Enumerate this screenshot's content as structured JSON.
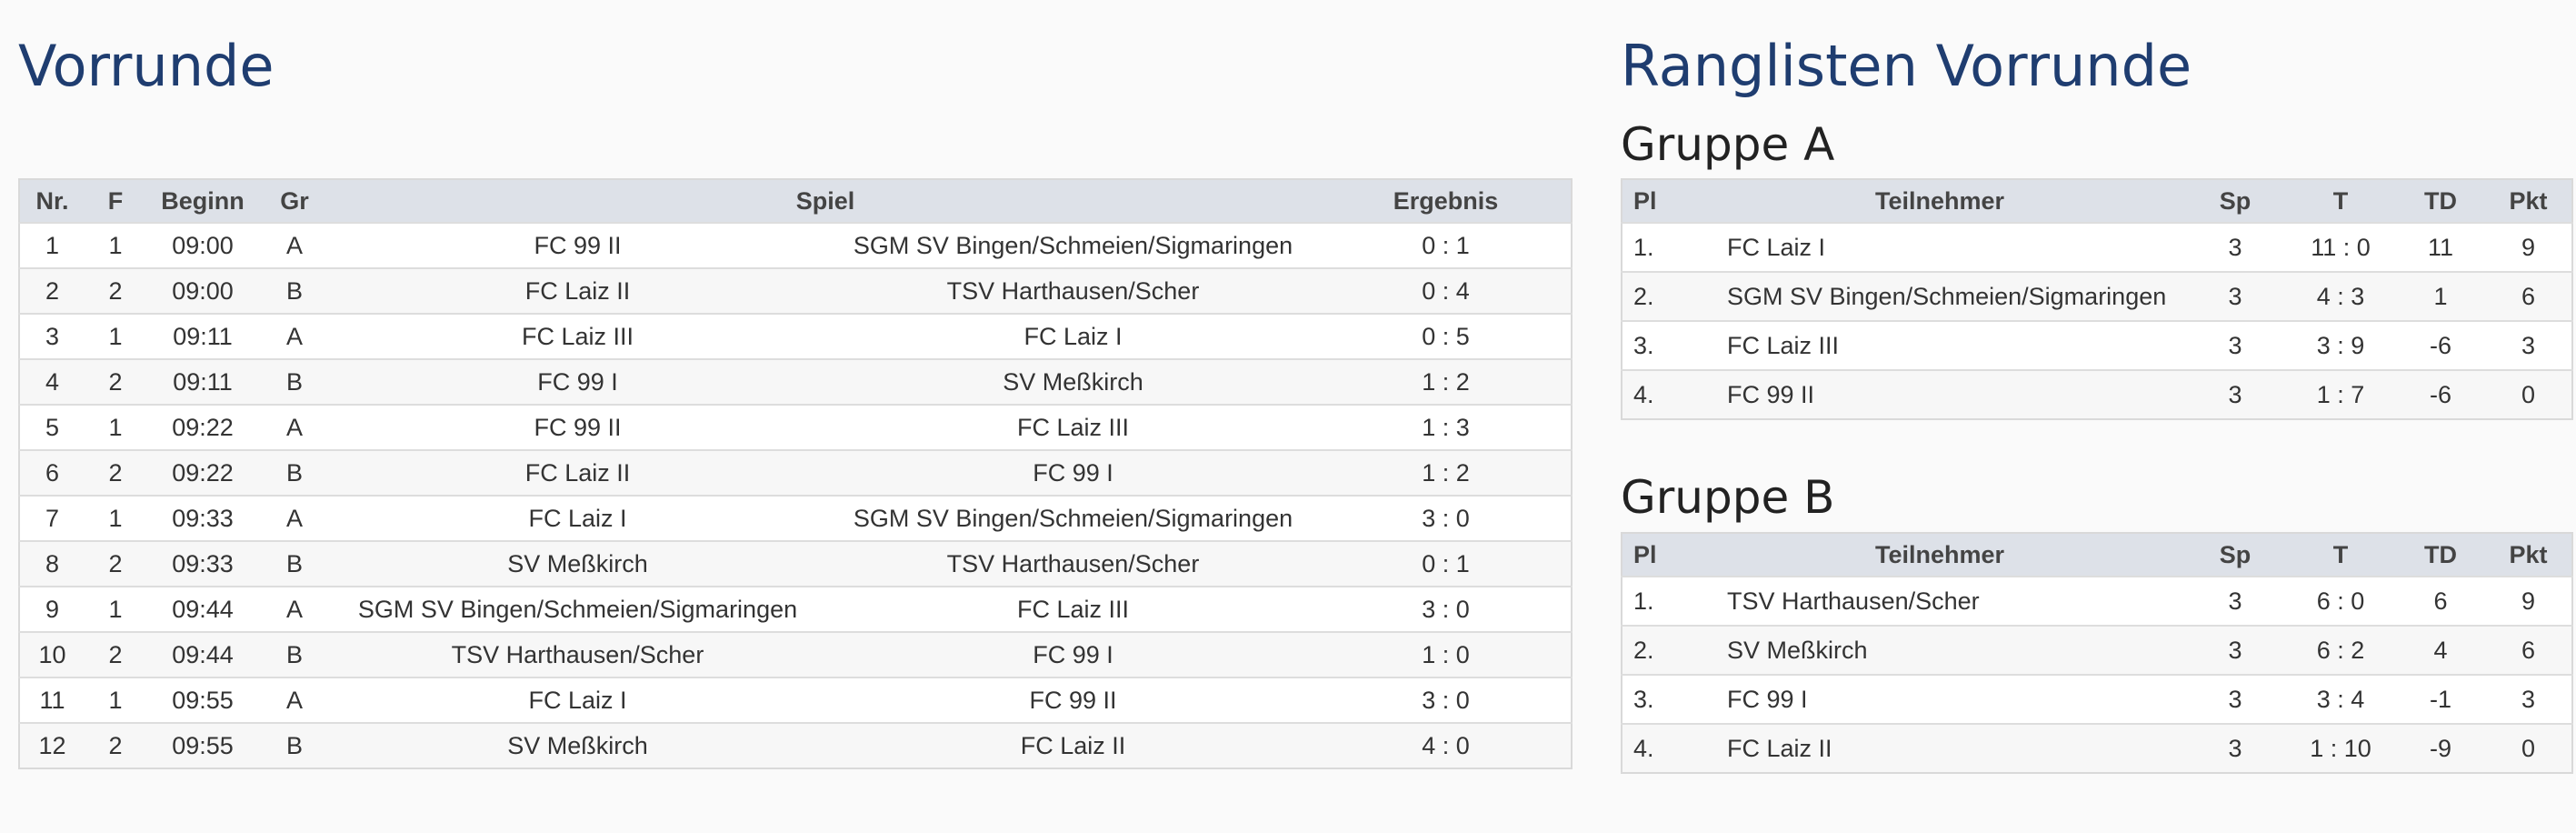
{
  "vorrunde": {
    "title": "Vorrunde",
    "headers": {
      "nr": "Nr.",
      "f": "F",
      "beginn": "Beginn",
      "gr": "Gr",
      "spiel": "Spiel",
      "ergebnis": "Ergebnis"
    },
    "matches": [
      {
        "nr": "1",
        "f": "1",
        "beginn": "09:00",
        "gr": "A",
        "home": "FC 99 II",
        "away": "SGM SV Bingen/Schmeien/Sigmaringen",
        "result": "0 : 1"
      },
      {
        "nr": "2",
        "f": "2",
        "beginn": "09:00",
        "gr": "B",
        "home": "FC Laiz II",
        "away": "TSV Harthausen/Scher",
        "result": "0 : 4"
      },
      {
        "nr": "3",
        "f": "1",
        "beginn": "09:11",
        "gr": "A",
        "home": "FC Laiz III",
        "away": "FC Laiz I",
        "result": "0 : 5"
      },
      {
        "nr": "4",
        "f": "2",
        "beginn": "09:11",
        "gr": "B",
        "home": "FC 99 I",
        "away": "SV Meßkirch",
        "result": "1 : 2"
      },
      {
        "nr": "5",
        "f": "1",
        "beginn": "09:22",
        "gr": "A",
        "home": "FC 99 II",
        "away": "FC Laiz III",
        "result": "1 : 3"
      },
      {
        "nr": "6",
        "f": "2",
        "beginn": "09:22",
        "gr": "B",
        "home": "FC Laiz II",
        "away": "FC 99 I",
        "result": "1 : 2"
      },
      {
        "nr": "7",
        "f": "1",
        "beginn": "09:33",
        "gr": "A",
        "home": "FC Laiz I",
        "away": "SGM SV Bingen/Schmeien/Sigmaringen",
        "result": "3 : 0"
      },
      {
        "nr": "8",
        "f": "2",
        "beginn": "09:33",
        "gr": "B",
        "home": "SV Meßkirch",
        "away": "TSV Harthausen/Scher",
        "result": "0 : 1"
      },
      {
        "nr": "9",
        "f": "1",
        "beginn": "09:44",
        "gr": "A",
        "home": "SGM SV Bingen/Schmeien/Sigmaringen",
        "away": "FC Laiz III",
        "result": "3 : 0"
      },
      {
        "nr": "10",
        "f": "2",
        "beginn": "09:44",
        "gr": "B",
        "home": "TSV Harthausen/Scher",
        "away": "FC 99 I",
        "result": "1 : 0"
      },
      {
        "nr": "11",
        "f": "1",
        "beginn": "09:55",
        "gr": "A",
        "home": "FC Laiz I",
        "away": "FC 99 II",
        "result": "3 : 0"
      },
      {
        "nr": "12",
        "f": "2",
        "beginn": "09:55",
        "gr": "B",
        "home": "SV Meßkirch",
        "away": "FC Laiz II",
        "result": "4 : 0"
      }
    ]
  },
  "ranglisten": {
    "title": "Ranglisten Vorrunde",
    "headers": {
      "pl": "Pl",
      "teilnehmer": "Teilnehmer",
      "sp": "Sp",
      "t": "T",
      "td": "TD",
      "pkt": "Pkt"
    },
    "gruppe_a": {
      "title": "Gruppe A",
      "rows": [
        {
          "pl": "1.",
          "team": "FC Laiz I",
          "sp": "3",
          "t": "11 : 0",
          "td": "11",
          "pkt": "9"
        },
        {
          "pl": "2.",
          "team": "SGM SV Bingen/Schmeien/Sigmaringen",
          "sp": "3",
          "t": "4 : 3",
          "td": "1",
          "pkt": "6"
        },
        {
          "pl": "3.",
          "team": "FC Laiz III",
          "sp": "3",
          "t": "3 : 9",
          "td": "-6",
          "pkt": "3"
        },
        {
          "pl": "4.",
          "team": "FC 99 II",
          "sp": "3",
          "t": "1 : 7",
          "td": "-6",
          "pkt": "0"
        }
      ]
    },
    "gruppe_b": {
      "title": "Gruppe B",
      "rows": [
        {
          "pl": "1.",
          "team": "TSV Harthausen/Scher",
          "sp": "3",
          "t": "6 : 0",
          "td": "6",
          "pkt": "9"
        },
        {
          "pl": "2.",
          "team": "SV Meßkirch",
          "sp": "3",
          "t": "6 : 2",
          "td": "4",
          "pkt": "6"
        },
        {
          "pl": "3.",
          "team": "FC 99 I",
          "sp": "3",
          "t": "3 : 4",
          "td": "-1",
          "pkt": "3"
        },
        {
          "pl": "4.",
          "team": "FC Laiz II",
          "sp": "3",
          "t": "1 : 10",
          "td": "-9",
          "pkt": "0"
        }
      ]
    }
  },
  "colors": {
    "heading": "#1f3d70",
    "table_header_bg": "#dde1e8"
  }
}
